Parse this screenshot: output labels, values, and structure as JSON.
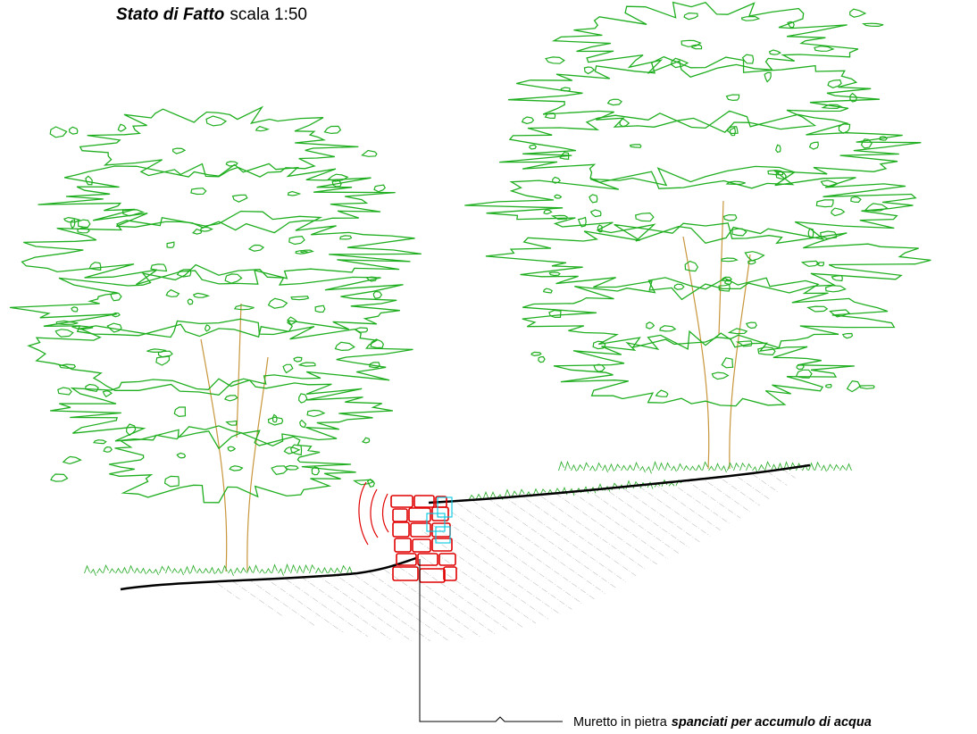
{
  "title": {
    "bold": "Stato di Fatto",
    "rest": "scala 1:50"
  },
  "annotation": {
    "plain": "Muretto in pietra",
    "emphasis": "spanciati per accumulo di acqua"
  }
}
